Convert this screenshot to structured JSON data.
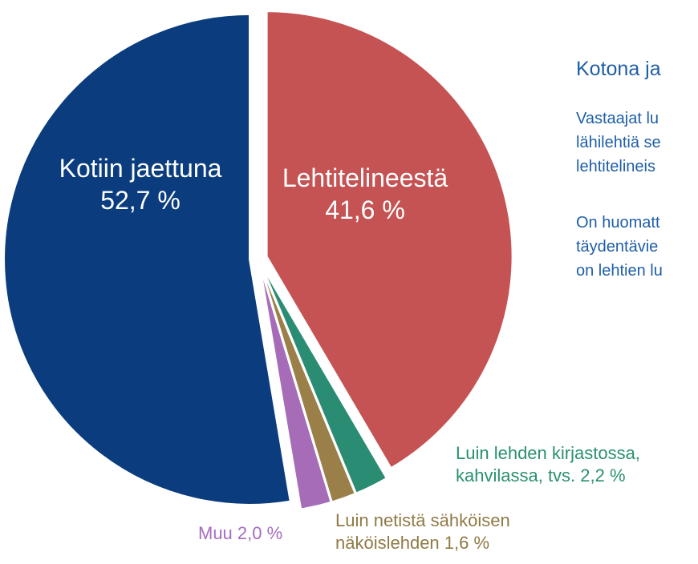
{
  "chart_data": {
    "type": "pie",
    "categories": [
      "Lehtitelineestä",
      "Luin lehden kirjastossa, kahvilassa, tvs.",
      "Luin netistä sähköisen näköislehden",
      "Muu",
      "Kotiin jaettuna"
    ],
    "values": [
      41.6,
      2.2,
      1.6,
      2.0,
      52.7
    ],
    "value_labels": [
      "41,6 %",
      "2,2 %",
      "1,6 %",
      "2,0 %",
      "52,7 %"
    ],
    "colors": [
      "#c55353",
      "#2a8c72",
      "#9a8048",
      "#a66cb8",
      "#0b3d7e"
    ]
  },
  "side_text": {
    "heading": "Kotona ja",
    "paragraphs": [
      [
        "Vastaajat lu",
        "lähilehtiä se",
        "lehtitelineis"
      ],
      [
        "On huomatt",
        "täydentävie",
        "on lehtien lu"
      ]
    ]
  }
}
